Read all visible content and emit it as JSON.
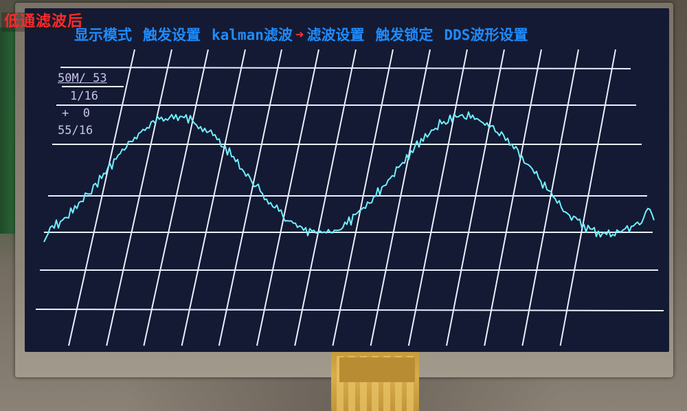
{
  "caption": "低通滤波后",
  "menu": {
    "items": [
      {
        "label": "显示模式"
      },
      {
        "label": "触发设置"
      },
      {
        "label": "kalman滤波"
      },
      {
        "label": "滤波设置"
      },
      {
        "label": "触发锁定"
      },
      {
        "label": "DDS波形设置"
      }
    ],
    "arrow_glyph": "➔"
  },
  "readouts": {
    "timebase": "50M/ 53",
    "ratio": "1/16",
    "trigger": "+  0",
    "level": "55/16"
  },
  "colors": {
    "menu_text": "#1e8cff",
    "menu_arrow": "#ff3b3b",
    "grid": "#e8f0ff",
    "trace": "#6ff0ff",
    "screen": "#141a33",
    "caption": "#ff2a2a",
    "readout": "#c8c4ea"
  },
  "waveform": {
    "shape": "noisy sine",
    "cycles": 1.75
  }
}
